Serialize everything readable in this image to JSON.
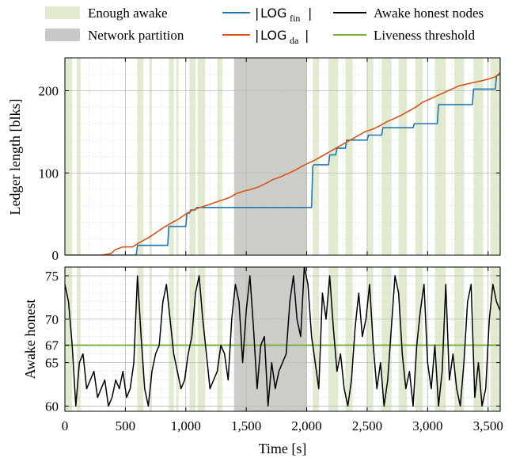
{
  "legend": {
    "enough_awake": "Enough awake",
    "network_partition": "Network partition",
    "log_fin": {
      "main": "LOG",
      "sub": "fin"
    },
    "log_da": {
      "main": "LOG",
      "sub": "da"
    },
    "awake_honest_nodes": "Awake honest nodes",
    "liveness_threshold": "Liveness threshold"
  },
  "colors": {
    "log_fin": "#1f77b4",
    "log_da": "#d95319",
    "awake": "#000000",
    "threshold": "#7cae3a",
    "enough_awake_band": "#e0ebd0",
    "partition_band": "#c8c8c8"
  },
  "chart_data": [
    {
      "type": "line",
      "xlabel": "",
      "ylabel": "Ledger length [blks]",
      "xlim": [
        0,
        3600
      ],
      "ylim": [
        0,
        240
      ],
      "yticks": [
        "0",
        "100",
        "200"
      ],
      "ytick_values": [
        0,
        100,
        200
      ],
      "grid": true,
      "partition": [
        1400,
        2000
      ],
      "enough_awake_intervals": [
        [
          0,
          60
        ],
        [
          100,
          130
        ],
        [
          600,
          650
        ],
        [
          700,
          720
        ],
        [
          860,
          900
        ],
        [
          920,
          940
        ],
        [
          1030,
          1080
        ],
        [
          1100,
          1160
        ],
        [
          1260,
          1300
        ],
        [
          1400,
          2000
        ],
        [
          2050,
          2100
        ],
        [
          2180,
          2260
        ],
        [
          2320,
          2380
        ],
        [
          2500,
          2550
        ],
        [
          2620,
          2700
        ],
        [
          2760,
          2830
        ],
        [
          2900,
          2960
        ],
        [
          3060,
          3150
        ],
        [
          3220,
          3300
        ],
        [
          3380,
          3460
        ],
        [
          3520,
          3600
        ]
      ],
      "series": [
        {
          "name": "LOG_fin",
          "x": [
            0,
            380,
            390,
            590,
            600,
            850,
            860,
            880,
            890,
            1000,
            1010,
            1030,
            1040,
            1080,
            1090,
            1300,
            1320,
            2040,
            2050,
            2060,
            2180,
            2190,
            2240,
            2250,
            2320,
            2330,
            2500,
            2510,
            2620,
            2630,
            2880,
            2890,
            3080,
            3090,
            3370,
            3380,
            3560,
            3570,
            3600
          ],
          "y": [
            0,
            0,
            0,
            0,
            12,
            12,
            35,
            35,
            35,
            35,
            51,
            51,
            55,
            55,
            58,
            58,
            58,
            58,
            108,
            110,
            110,
            122,
            122,
            130,
            130,
            140,
            140,
            146,
            146,
            155,
            155,
            160,
            160,
            183,
            183,
            202,
            202,
            218,
            220
          ]
        },
        {
          "name": "LOG_da",
          "x": [
            0,
            100,
            200,
            300,
            380,
            420,
            480,
            560,
            600,
            650,
            700,
            760,
            820,
            880,
            940,
            1000,
            1060,
            1120,
            1180,
            1240,
            1300,
            1360,
            1420,
            1480,
            1540,
            1600,
            1660,
            1720,
            1780,
            1840,
            1900,
            1960,
            2000,
            2060,
            2120,
            2180,
            2240,
            2300,
            2360,
            2420,
            2480,
            2540,
            2600,
            2660,
            2720,
            2780,
            2840,
            2900,
            2960,
            3020,
            3080,
            3140,
            3200,
            3260,
            3320,
            3380,
            3440,
            3500,
            3560,
            3600
          ],
          "y": [
            0,
            0,
            0,
            0,
            2,
            7,
            10,
            10,
            14,
            18,
            22,
            28,
            34,
            39,
            44,
            50,
            55,
            58,
            61,
            64,
            67,
            70,
            75,
            78,
            80,
            83,
            87,
            92,
            95,
            99,
            103,
            108,
            111,
            115,
            120,
            125,
            130,
            135,
            140,
            145,
            150,
            153,
            157,
            162,
            166,
            170,
            175,
            180,
            186,
            190,
            194,
            198,
            202,
            206,
            208,
            210,
            212,
            214,
            217,
            222
          ]
        }
      ]
    },
    {
      "type": "line",
      "xlabel": "Time [s]",
      "ylabel": "Awake honest",
      "xlim": [
        0,
        3600
      ],
      "ylim": [
        59.4,
        76
      ],
      "yticks": [
        "60",
        "65",
        "67",
        "70",
        "75"
      ],
      "ytick_values": [
        60,
        65,
        67,
        70,
        75
      ],
      "xticks": [
        "0",
        "500",
        "1,000",
        "1,500",
        "2,000",
        "2,500",
        "3,000",
        "3,500"
      ],
      "xtick_values": [
        0,
        500,
        1000,
        1500,
        2000,
        2500,
        3000,
        3500
      ],
      "grid": true,
      "threshold": 67,
      "series": [
        {
          "name": "Awake honest nodes",
          "x": [
            0,
            30,
            60,
            90,
            120,
            150,
            180,
            210,
            240,
            270,
            300,
            330,
            360,
            390,
            420,
            450,
            480,
            510,
            540,
            570,
            600,
            630,
            660,
            690,
            720,
            750,
            780,
            810,
            840,
            870,
            900,
            930,
            960,
            990,
            1020,
            1050,
            1080,
            1110,
            1140,
            1170,
            1200,
            1230,
            1260,
            1290,
            1320,
            1350,
            1380,
            1410,
            1440,
            1470,
            1500,
            1530,
            1560,
            1590,
            1620,
            1650,
            1680,
            1710,
            1740,
            1770,
            1800,
            1830,
            1860,
            1890,
            1920,
            1950,
            1980,
            2010,
            2040,
            2070,
            2100,
            2130,
            2160,
            2190,
            2220,
            2250,
            2280,
            2310,
            2340,
            2370,
            2400,
            2430,
            2460,
            2490,
            2520,
            2550,
            2580,
            2610,
            2640,
            2670,
            2700,
            2730,
            2760,
            2790,
            2820,
            2850,
            2880,
            2910,
            2940,
            2970,
            3000,
            3030,
            3060,
            3090,
            3120,
            3150,
            3180,
            3210,
            3240,
            3270,
            3300,
            3330,
            3360,
            3390,
            3420,
            3450,
            3480,
            3510,
            3540,
            3570,
            3600
          ],
          "y": [
            74,
            72,
            67,
            60,
            65,
            66,
            62,
            63,
            64,
            61,
            62,
            63,
            60,
            61,
            63,
            62,
            64,
            61,
            62,
            65,
            75,
            68,
            62,
            60,
            64,
            66,
            67,
            72,
            74,
            70,
            66,
            64,
            62,
            63,
            66,
            68,
            73,
            75,
            70,
            66,
            62,
            63,
            64,
            67,
            66,
            63,
            70,
            74,
            72,
            65,
            71,
            75,
            69,
            62,
            67,
            68,
            60,
            65,
            62,
            64,
            65,
            66,
            72,
            75,
            70,
            68,
            76,
            74,
            68,
            65,
            62,
            73,
            70,
            75,
            69,
            64,
            66,
            62,
            60,
            63,
            69,
            73,
            68,
            70,
            74,
            67,
            62,
            65,
            60,
            63,
            69,
            75,
            73,
            66,
            62,
            64,
            60,
            67,
            71,
            74,
            65,
            62,
            67,
            60,
            64,
            74,
            63,
            66,
            62,
            60,
            65,
            72,
            74,
            61,
            65,
            60,
            62,
            70,
            74,
            72,
            71
          ]
        }
      ]
    }
  ]
}
